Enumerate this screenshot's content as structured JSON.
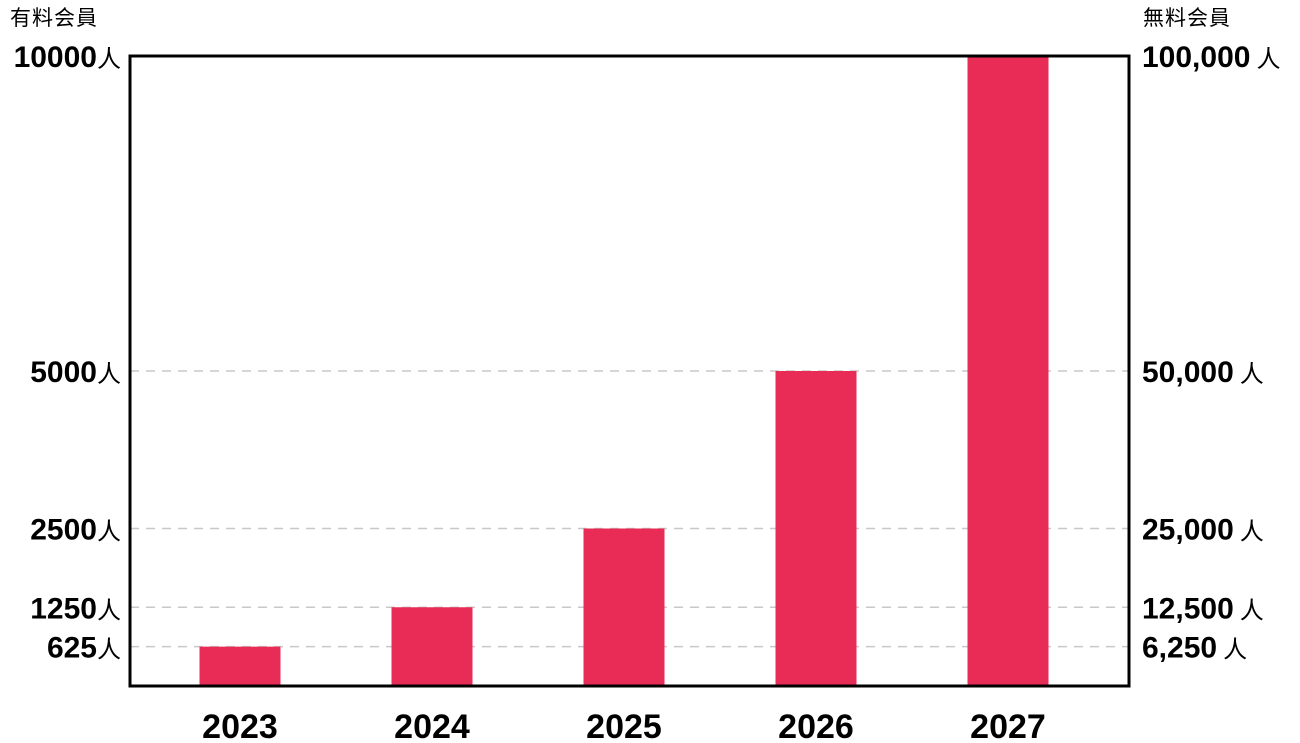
{
  "chart_data": {
    "type": "bar",
    "categories": [
      "2023",
      "2024",
      "2025",
      "2026",
      "2027"
    ],
    "series": [
      {
        "values": [
          625,
          1250,
          2500,
          5000,
          10000
        ]
      }
    ],
    "y_left": {
      "label": "有料会員",
      "unit": "人",
      "ticks": [
        625,
        1250,
        2500,
        5000,
        10000
      ],
      "tick_labels": [
        "625",
        "1250",
        "2500",
        "5000",
        "10000"
      ]
    },
    "y_right": {
      "label": "無料会員",
      "unit": "人",
      "ticks": [
        6250,
        12500,
        25000,
        50000,
        100000
      ],
      "tick_labels": [
        "6,250",
        "12,500",
        "25,000",
        "50,000",
        "100,000"
      ]
    },
    "ylim": [
      0,
      10000
    ],
    "grid": "dashed horizontal at tick values",
    "bar_color": "#e82c55",
    "grid_color": "#c8c8c8"
  }
}
